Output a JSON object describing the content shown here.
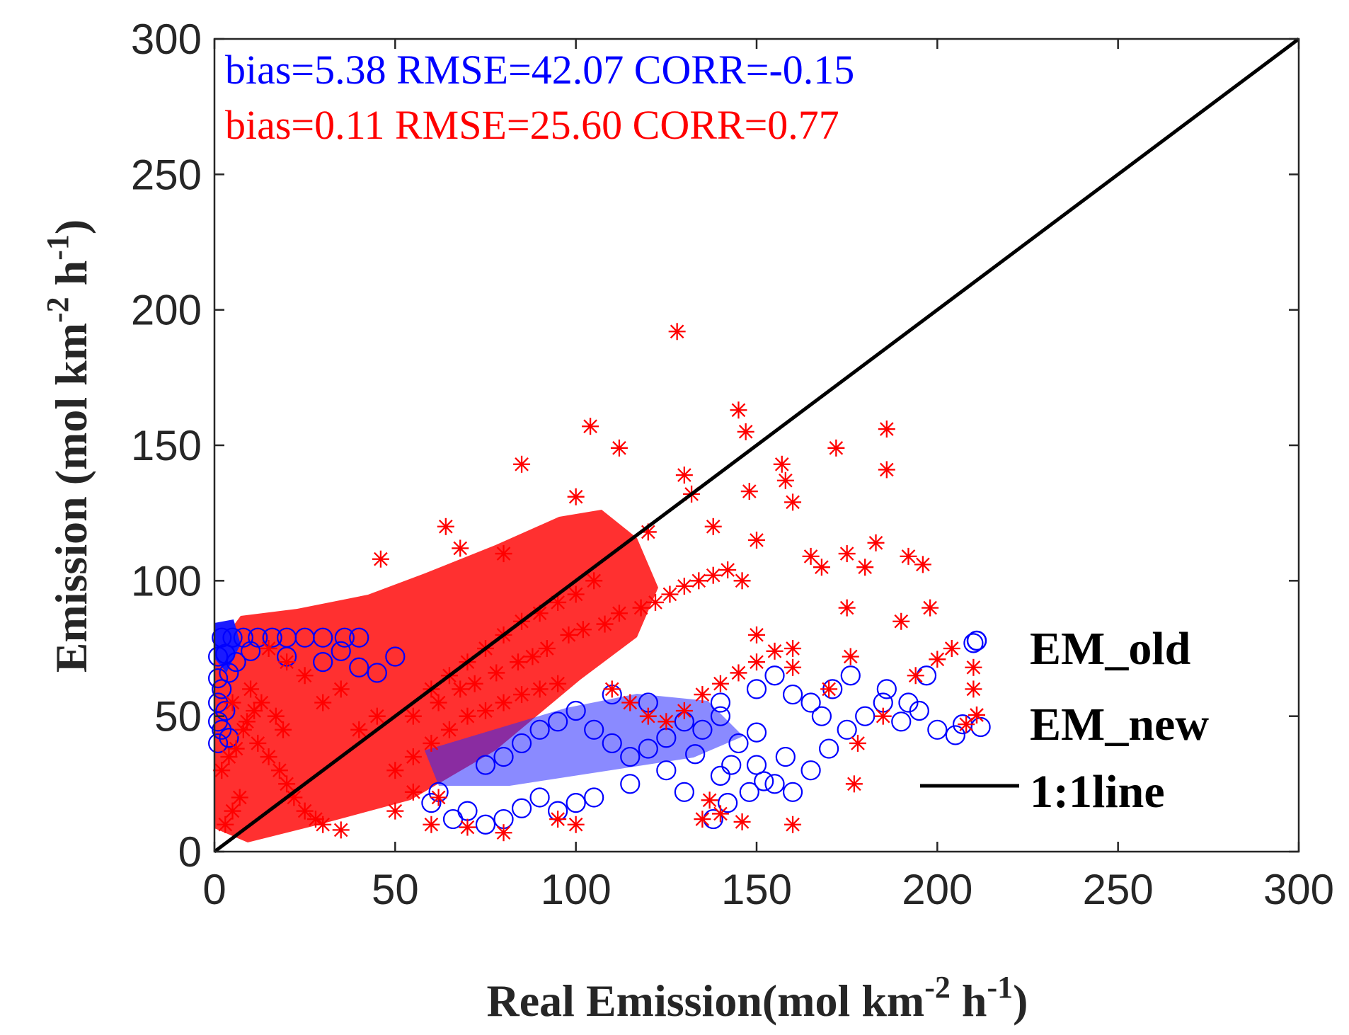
{
  "chart_data": {
    "type": "scatter",
    "title": "",
    "xlabel": {
      "main": "Real Emission(mol km",
      "sup1": "-2",
      "mid": " h",
      "sup2": "-1",
      "end": ")"
    },
    "ylabel": {
      "main": "Emission (mol km",
      "sup1": "-2",
      "mid": " h",
      "sup2": "-1",
      "end": ")"
    },
    "xlim": [
      0,
      300
    ],
    "ylim": [
      0,
      300
    ],
    "xticks": [
      "0",
      "50",
      "100",
      "150",
      "200",
      "250",
      "300"
    ],
    "yticks": [
      "0",
      "50",
      "100",
      "150",
      "200",
      "250",
      "300"
    ],
    "annotations": [
      {
        "text": "bias=5.38 RMSE=42.07 CORR=-0.15",
        "color": "#0000ff"
      },
      {
        "text": "bias=0.11 RMSE=25.60 CORR=0.77",
        "color": "#ff0000"
      }
    ],
    "legend_position": "bottom-right",
    "series": [
      {
        "name": "EM_old",
        "marker": "circle",
        "color": "#0000ff",
        "points": [
          [
            2,
            79
          ],
          [
            5,
            79
          ],
          [
            8,
            79
          ],
          [
            12,
            79
          ],
          [
            16,
            79
          ],
          [
            20,
            79
          ],
          [
            25,
            79
          ],
          [
            30,
            79
          ],
          [
            36,
            79
          ],
          [
            40,
            79
          ],
          [
            1,
            72
          ],
          [
            3,
            73
          ],
          [
            6,
            70
          ],
          [
            10,
            74
          ],
          [
            1,
            64
          ],
          [
            2,
            60
          ],
          [
            4,
            66
          ],
          [
            1,
            55
          ],
          [
            3,
            52
          ],
          [
            1,
            48
          ],
          [
            2,
            45
          ],
          [
            4,
            42
          ],
          [
            1,
            40
          ],
          [
            20,
            72
          ],
          [
            30,
            70
          ],
          [
            40,
            68
          ],
          [
            50,
            72
          ],
          [
            45,
            66
          ],
          [
            35,
            74
          ],
          [
            60,
            18
          ],
          [
            70,
            15
          ],
          [
            62,
            22
          ],
          [
            80,
            12
          ],
          [
            85,
            16
          ],
          [
            90,
            20
          ],
          [
            95,
            15
          ],
          [
            100,
            18
          ],
          [
            75,
            10
          ],
          [
            66,
            12
          ],
          [
            105,
            45
          ],
          [
            110,
            40
          ],
          [
            115,
            35
          ],
          [
            120,
            38
          ],
          [
            125,
            42
          ],
          [
            130,
            48
          ],
          [
            135,
            45
          ],
          [
            140,
            50
          ],
          [
            145,
            40
          ],
          [
            150,
            44
          ],
          [
            105,
            20
          ],
          [
            115,
            25
          ],
          [
            125,
            30
          ],
          [
            130,
            22
          ],
          [
            140,
            28
          ],
          [
            150,
            32
          ],
          [
            155,
            25
          ],
          [
            158,
            35
          ],
          [
            160,
            22
          ],
          [
            165,
            30
          ],
          [
            170,
            38
          ],
          [
            175,
            45
          ],
          [
            180,
            50
          ],
          [
            185,
            55
          ],
          [
            190,
            48
          ],
          [
            195,
            52
          ],
          [
            200,
            45
          ],
          [
            205,
            43
          ],
          [
            207,
            47
          ],
          [
            212,
            46
          ],
          [
            171,
            60
          ],
          [
            176,
            65
          ],
          [
            186,
            60
          ],
          [
            192,
            55
          ],
          [
            197,
            65
          ],
          [
            210,
            77
          ],
          [
            138,
            12
          ],
          [
            142,
            18
          ],
          [
            148,
            22
          ],
          [
            152,
            26
          ],
          [
            143,
            32
          ],
          [
            133,
            36
          ],
          [
            140,
            55
          ],
          [
            150,
            60
          ],
          [
            160,
            58
          ],
          [
            155,
            65
          ],
          [
            165,
            55
          ],
          [
            168,
            50
          ],
          [
            110,
            58
          ],
          [
            120,
            55
          ],
          [
            100,
            52
          ],
          [
            95,
            48
          ],
          [
            90,
            45
          ],
          [
            85,
            40
          ],
          [
            80,
            35
          ],
          [
            75,
            32
          ]
        ]
      },
      {
        "name": "EM_new",
        "marker": "star",
        "color": "#ff0000",
        "points": [
          [
            128,
            192
          ],
          [
            145,
            163
          ],
          [
            147,
            155
          ],
          [
            104,
            157
          ],
          [
            112,
            149
          ],
          [
            172,
            149
          ],
          [
            186,
            156
          ],
          [
            186,
            141
          ],
          [
            85,
            143
          ],
          [
            157,
            143
          ],
          [
            158,
            137
          ],
          [
            130,
            139
          ],
          [
            100,
            131
          ],
          [
            132,
            132
          ],
          [
            148,
            133
          ],
          [
            160,
            129
          ],
          [
            64,
            120
          ],
          [
            46,
            108
          ],
          [
            68,
            112
          ],
          [
            80,
            110
          ],
          [
            120,
            118
          ],
          [
            138,
            120
          ],
          [
            150,
            115
          ],
          [
            165,
            109
          ],
          [
            168,
            105
          ],
          [
            175,
            110
          ],
          [
            180,
            105
          ],
          [
            183,
            114
          ],
          [
            192,
            109
          ],
          [
            196,
            106
          ],
          [
            175,
            90
          ],
          [
            190,
            85
          ],
          [
            198,
            90
          ],
          [
            150,
            80
          ],
          [
            160,
            75
          ],
          [
            176,
            72
          ],
          [
            194,
            65
          ],
          [
            200,
            71
          ],
          [
            204,
            75
          ],
          [
            210,
            68
          ],
          [
            210,
            60
          ],
          [
            160,
            68
          ],
          [
            170,
            60
          ],
          [
            208,
            47
          ],
          [
            185,
            50
          ],
          [
            178,
            40
          ],
          [
            177,
            25
          ],
          [
            160,
            10
          ],
          [
            146,
            11
          ],
          [
            140,
            14
          ],
          [
            137,
            19
          ],
          [
            135,
            12
          ],
          [
            100,
            10
          ],
          [
            95,
            12
          ],
          [
            80,
            7
          ],
          [
            70,
            9
          ],
          [
            60,
            10
          ],
          [
            62,
            20
          ],
          [
            50,
            15
          ],
          [
            55,
            22
          ],
          [
            40,
            45
          ],
          [
            45,
            50
          ],
          [
            30,
            55
          ],
          [
            35,
            60
          ],
          [
            25,
            65
          ],
          [
            20,
            70
          ],
          [
            15,
            75
          ],
          [
            10,
            60
          ],
          [
            5,
            55
          ],
          [
            8,
            45
          ],
          [
            12,
            40
          ],
          [
            15,
            35
          ],
          [
            18,
            30
          ],
          [
            20,
            25
          ],
          [
            22,
            20
          ],
          [
            25,
            15
          ],
          [
            28,
            12
          ],
          [
            30,
            10
          ],
          [
            35,
            8
          ],
          [
            3,
            10
          ],
          [
            5,
            15
          ],
          [
            7,
            20
          ],
          [
            2,
            30
          ],
          [
            4,
            35
          ],
          [
            6,
            38
          ],
          [
            9,
            48
          ],
          [
            11,
            52
          ],
          [
            13,
            55
          ],
          [
            17,
            50
          ],
          [
            19,
            45
          ],
          [
            60,
            60
          ],
          [
            65,
            65
          ],
          [
            70,
            70
          ],
          [
            75,
            75
          ],
          [
            80,
            80
          ],
          [
            85,
            85
          ],
          [
            90,
            88
          ],
          [
            95,
            92
          ],
          [
            100,
            95
          ],
          [
            105,
            100
          ],
          [
            55,
            50
          ],
          [
            62,
            55
          ],
          [
            68,
            60
          ],
          [
            72,
            62
          ],
          [
            78,
            66
          ],
          [
            84,
            70
          ],
          [
            88,
            72
          ],
          [
            92,
            75
          ],
          [
            98,
            80
          ],
          [
            102,
            82
          ],
          [
            108,
            84
          ],
          [
            112,
            88
          ],
          [
            118,
            90
          ],
          [
            122,
            92
          ],
          [
            126,
            95
          ],
          [
            130,
            98
          ],
          [
            134,
            100
          ],
          [
            138,
            102
          ],
          [
            142,
            104
          ],
          [
            146,
            100
          ],
          [
            110,
            60
          ],
          [
            115,
            55
          ],
          [
            120,
            50
          ],
          [
            125,
            48
          ],
          [
            130,
            52
          ],
          [
            135,
            58
          ],
          [
            140,
            62
          ],
          [
            145,
            66
          ],
          [
            150,
            70
          ],
          [
            155,
            74
          ],
          [
            50,
            30
          ],
          [
            55,
            35
          ],
          [
            60,
            40
          ],
          [
            65,
            45
          ],
          [
            70,
            50
          ],
          [
            75,
            52
          ],
          [
            80,
            55
          ],
          [
            85,
            58
          ],
          [
            90,
            60
          ],
          [
            95,
            62
          ]
        ]
      },
      {
        "name": "1:1line",
        "marker": "line",
        "color": "#000000",
        "points": [
          [
            0,
            0
          ],
          [
            300,
            300
          ]
        ]
      }
    ]
  }
}
